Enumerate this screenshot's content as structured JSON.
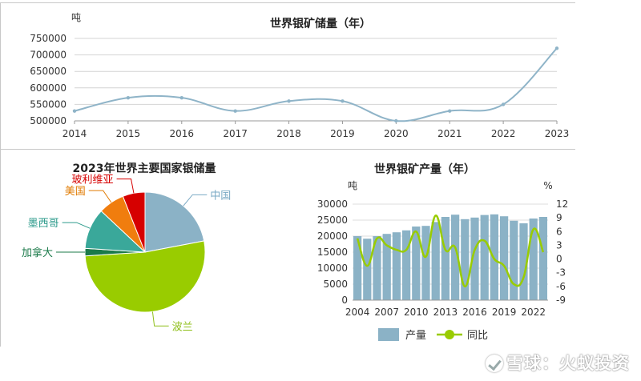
{
  "chart_data": [
    {
      "type": "line",
      "title": "世界银矿储量（年）",
      "ylabel": "吨",
      "x": [
        "2014",
        "2015",
        "2016",
        "2017",
        "2018",
        "2019",
        "2020",
        "2021",
        "2022",
        "2023"
      ],
      "series": [
        {
          "values": [
            530000,
            570000,
            570000,
            530000,
            560000,
            560000,
            500000,
            530000,
            550000,
            720000
          ]
        }
      ],
      "yticks": [
        "500000",
        "550000",
        "600000",
        "650000",
        "700000",
        "750000"
      ],
      "ylim": [
        500000,
        750000
      ],
      "grid": true,
      "color": "#8fb4c8"
    },
    {
      "type": "pie",
      "title": "2023年世界主要国家银储量",
      "slices": [
        {
          "label": "中国",
          "value": 22,
          "color": "#8bb2c6"
        },
        {
          "label": "波兰",
          "value": 52,
          "color": "#99cc00"
        },
        {
          "label": "加拿大",
          "value": 2,
          "color": "#1b7a4a"
        },
        {
          "label": "墨西哥",
          "value": 11,
          "color": "#3aa89a"
        },
        {
          "label": "美国",
          "value": 7,
          "color": "#f07d0e"
        },
        {
          "label": "玻利维亚",
          "value": 6,
          "color": "#d60000"
        }
      ],
      "label_colors": {
        "中国": "#7aa9c4",
        "波兰": "#8fbf1a",
        "加拿大": "#1b7a4a",
        "墨西哥": "#2e9b8c",
        "美国": "#e07a00",
        "玻利维亚": "#d60000"
      }
    },
    {
      "type": "bar",
      "title": "世界银矿产量（年）",
      "ylabel": "吨",
      "y2label": "%",
      "x": [
        "2004",
        "2005",
        "2006",
        "2007",
        "2008",
        "2009",
        "2010",
        "2011",
        "2012",
        "2013",
        "2014",
        "2015",
        "2016",
        "2017",
        "2018",
        "2019",
        "2020",
        "2021",
        "2022",
        "2023"
      ],
      "xticks": [
        "2004",
        "2007",
        "2010",
        "2013",
        "2016",
        "2019",
        "2022"
      ],
      "yticks": [
        "0",
        "5000",
        "10000",
        "15000",
        "20000",
        "25000",
        "30000"
      ],
      "y2ticks": [
        "-9",
        "-6",
        "-3",
        "0",
        "3",
        "6",
        "9",
        "12"
      ],
      "ylim": [
        0,
        30000
      ],
      "y2lim": [
        -9,
        12
      ],
      "series": [
        {
          "name": "产量",
          "type": "bar",
          "color": "#8bb2c6",
          "values": [
            20000,
            19200,
            20000,
            20700,
            21200,
            21800,
            23000,
            23200,
            24400,
            26000,
            26700,
            25300,
            25800,
            26600,
            26800,
            26200,
            24800,
            24000,
            25500,
            26000
          ]
        },
        {
          "name": "同比",
          "type": "line",
          "color": "#99cc00",
          "values": [
            4.5,
            -1.5,
            4.5,
            3.0,
            2.0,
            2.0,
            6.0,
            0.5,
            9.5,
            2.0,
            2.5,
            -6.0,
            2.0,
            4.0,
            0.0,
            -1.5,
            -5.5,
            -4.0,
            6.5,
            1.5
          ]
        }
      ],
      "legend": "bottom",
      "grid": true
    }
  ],
  "watermark": "雪球：火蚁投资"
}
